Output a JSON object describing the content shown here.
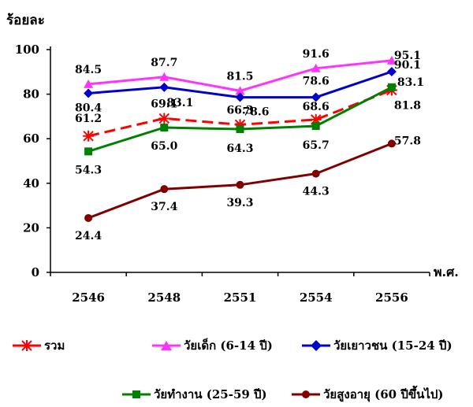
{
  "chart_data": {
    "type": "line",
    "ylabel": "ร้อยละ",
    "xlabel": "พ.ศ.",
    "categories": [
      "2546",
      "2548",
      "2551",
      "2554",
      "2556"
    ],
    "ylim": [
      0,
      100
    ],
    "yticks": [
      "0",
      "20",
      "40",
      "60",
      "80",
      "100"
    ],
    "grid": false,
    "legend_position": "bottom",
    "series": [
      {
        "name": "รวม",
        "color": "#ff0000",
        "marker": "star",
        "dashed": true,
        "values": [
          61.2,
          69.1,
          66.3,
          68.6,
          81.8
        ],
        "labels": [
          "61.2",
          "69.1",
          "66.3",
          "68.6",
          "81.8"
        ]
      },
      {
        "name": "วัยเด็ก (6-14 ปี)",
        "color": "#ff33ff",
        "marker": "triangle",
        "dashed": false,
        "values": [
          84.5,
          87.7,
          81.5,
          91.6,
          95.1
        ],
        "labels": [
          "84.5",
          "87.7",
          "81.5",
          "91.6",
          "95.1"
        ]
      },
      {
        "name": "วัยเยาวชน (15-24 ปี)",
        "color": "#0000cc",
        "marker": "diamond",
        "dashed": false,
        "values": [
          80.4,
          83.1,
          78.6,
          78.6,
          90.1
        ],
        "labels": [
          "80.4",
          "83.1",
          "78.6",
          "78.6",
          "90.1"
        ]
      },
      {
        "name": "วัยทำงาน (25-59 ปี)",
        "color": "#008000",
        "marker": "square",
        "dashed": false,
        "values": [
          54.3,
          65.0,
          64.3,
          65.7,
          83.1
        ],
        "labels": [
          "54.3",
          "65.0",
          "64.3",
          "65.7",
          "83.1"
        ]
      },
      {
        "name": "วัยสูงอายุ (60 ปีขึ้นไป)",
        "color": "#800000",
        "marker": "circle",
        "dashed": false,
        "values": [
          24.4,
          37.4,
          39.3,
          44.3,
          57.8
        ],
        "labels": [
          "24.4",
          "37.4",
          "39.3",
          "44.3",
          "57.8"
        ]
      }
    ]
  }
}
